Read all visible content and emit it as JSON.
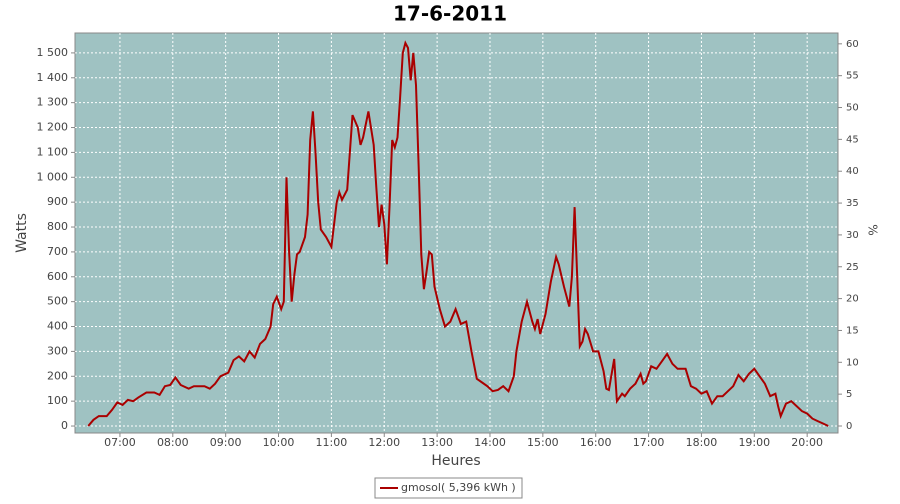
{
  "chart_data": {
    "type": "line",
    "title": "17-6-2011",
    "x_label": "Heures",
    "y_label": "Watts",
    "y2_label": "%",
    "x": [
      "06:24",
      "06:30",
      "06:36",
      "06:45",
      "06:51",
      "06:57",
      "07:03",
      "07:09",
      "07:15",
      "07:21",
      "07:30",
      "07:39",
      "07:45",
      "07:51",
      "07:57",
      "08:03",
      "08:09",
      "08:18",
      "08:24",
      "08:36",
      "08:42",
      "08:48",
      "08:54",
      "09:03",
      "09:09",
      "09:15",
      "09:21",
      "09:27",
      "09:33",
      "09:39",
      "09:45",
      "09:51",
      "09:54",
      "09:58",
      "10:03",
      "10:06",
      "10:09",
      "10:12",
      "10:15",
      "10:18",
      "10:21",
      "10:24",
      "10:30",
      "10:33",
      "10:36",
      "10:39",
      "10:42",
      "10:45",
      "10:48",
      "10:54",
      "11:00",
      "11:06",
      "11:09",
      "11:12",
      "11:18",
      "11:24",
      "11:30",
      "11:33",
      "11:36",
      "11:42",
      "11:48",
      "11:51",
      "11:54",
      "11:57",
      "12:00",
      "12:03",
      "12:06",
      "12:09",
      "12:12",
      "12:15",
      "12:18",
      "12:21",
      "12:24",
      "12:27",
      "12:30",
      "12:33",
      "12:36",
      "12:39",
      "12:42",
      "12:45",
      "12:48",
      "12:51",
      "12:54",
      "12:57",
      "13:03",
      "13:09",
      "13:15",
      "13:21",
      "13:27",
      "13:33",
      "13:39",
      "13:45",
      "13:51",
      "13:57",
      "14:03",
      "14:09",
      "14:15",
      "14:21",
      "14:27",
      "14:30",
      "14:36",
      "14:42",
      "14:48",
      "14:51",
      "14:54",
      "14:57",
      "15:03",
      "15:09",
      "15:15",
      "15:18",
      "15:24",
      "15:30",
      "15:33",
      "15:36",
      "15:39",
      "15:42",
      "15:45",
      "15:48",
      "15:51",
      "15:57",
      "16:03",
      "16:09",
      "16:12",
      "16:15",
      "16:21",
      "16:24",
      "16:30",
      "16:33",
      "16:39",
      "16:45",
      "16:51",
      "16:54",
      "16:57",
      "17:03",
      "17:09",
      "17:15",
      "17:21",
      "17:27",
      "17:33",
      "17:42",
      "17:48",
      "17:54",
      "18:00",
      "18:06",
      "18:12",
      "18:18",
      "18:24",
      "18:30",
      "18:36",
      "18:42",
      "18:48",
      "18:54",
      "19:00",
      "19:06",
      "19:12",
      "19:18",
      "19:24",
      "19:27",
      "19:30",
      "19:36",
      "19:42",
      "19:48",
      "19:54",
      "20:00",
      "20:06",
      "20:12",
      "20:18",
      "20:24"
    ],
    "series": [
      {
        "name": "gmosol( 5,396 kWh )",
        "color": "#aa0000",
        "values": [
          0,
          25,
          40,
          40,
          65,
          95,
          85,
          105,
          100,
          115,
          135,
          135,
          125,
          160,
          165,
          195,
          165,
          150,
          160,
          160,
          150,
          170,
          200,
          215,
          265,
          280,
          260,
          300,
          275,
          330,
          350,
          400,
          490,
          520,
          470,
          500,
          1000,
          700,
          500,
          610,
          690,
          700,
          760,
          850,
          1150,
          1265,
          1100,
          900,
          790,
          760,
          720,
          900,
          940,
          910,
          950,
          1250,
          1200,
          1130,
          1160,
          1265,
          1130,
          960,
          800,
          890,
          810,
          650,
          880,
          1150,
          1120,
          1160,
          1320,
          1500,
          1540,
          1520,
          1390,
          1500,
          1370,
          1050,
          690,
          550,
          620,
          700,
          690,
          560,
          470,
          400,
          420,
          470,
          410,
          420,
          300,
          190,
          175,
          160,
          140,
          145,
          160,
          140,
          200,
          300,
          420,
          500,
          420,
          390,
          430,
          370,
          450,
          580,
          680,
          650,
          560,
          480,
          600,
          880,
          600,
          320,
          340,
          390,
          370,
          300,
          300,
          220,
          150,
          145,
          270,
          100,
          130,
          120,
          150,
          170,
          210,
          170,
          180,
          240,
          230,
          260,
          290,
          250,
          230,
          230,
          160,
          150,
          130,
          140,
          90,
          120,
          120,
          140,
          160,
          205,
          180,
          210,
          230,
          200,
          170,
          120,
          130,
          80,
          40,
          90,
          100,
          80,
          60,
          50,
          30,
          20,
          10,
          0
        ]
      }
    ],
    "xlim": [
      "06:09",
      "20:35"
    ],
    "xticks": [
      "07:00",
      "08:00",
      "09:00",
      "10:00",
      "11:00",
      "12:00",
      "13:00",
      "14:00",
      "15:00",
      "16:00",
      "17:00",
      "18:00",
      "19:00",
      "20:00"
    ],
    "ylim": [
      -28,
      1580
    ],
    "yticks": [
      0,
      100,
      200,
      300,
      400,
      500,
      600,
      700,
      800,
      900,
      {
        "value": 1000,
        "label": "1 000"
      },
      {
        "value": 1100,
        "label": "1 100"
      },
      {
        "value": 1200,
        "label": "1 200"
      },
      {
        "value": 1300,
        "label": "1 300"
      },
      {
        "value": 1400,
        "label": "1 400"
      },
      {
        "value": 1500,
        "label": "1 500"
      }
    ],
    "y2lim": [
      -1.1,
      61.7
    ],
    "y2ticks": [
      0,
      5,
      10,
      15,
      20,
      25,
      30,
      35,
      40,
      45,
      50,
      55,
      60
    ],
    "grid": true,
    "plot_background": "#9fc2c2",
    "legend": "bottom"
  }
}
